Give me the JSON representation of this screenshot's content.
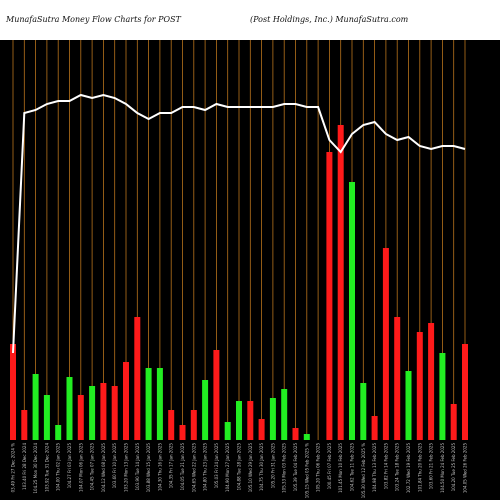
{
  "header": {
    "left_title": "MunafaSutra  Money Flow  Charts for POST",
    "right_title": "(Post Holdings,  Inc.) MunafaSutra.com"
  },
  "colors": {
    "background": "#000000",
    "grid": "#b8731c",
    "up_bar": "#22ee22",
    "down_bar": "#ff1a1a",
    "line": "#ffffff"
  },
  "chart_data": {
    "type": "bar",
    "title": "MunafaSutra  Money Flow  Charts for POST",
    "subtitle": "(Post Holdings,  Inc.) MunafaSutra.com",
    "grid": "vertical",
    "ylim": [
      0,
      100
    ],
    "categories": [
      "03.49 Fri 27 Dec 2024 %",
      "103.40 Fri 28 Dec 2024",
      "104.25 Mon 30 Dec 2024",
      "103.92 Tue 31 Dec 2024",
      "104.00 Thu 02 Jan 2025",
      "104.27 Fri 03 Jan 2025",
      "104.07 Mon 06 Jan 2025",
      "104.45 Tue 07 Jan 2025",
      "104.12 Wed 08 Jan 2025",
      "103.60 Fri 10 Jan 2025",
      "103.20 Mon 13 Jan 2025",
      "103.90 Tue 14 Jan 2025",
      "103.88 Wed 15 Jan 2025",
      "104.30 Thu 16 Jan 2025",
      "104.35 Fri 17 Jan 2025",
      "104.05 Tue 21 Jan 2025",
      "104.65 Wed 22 Jan 2025",
      "104.80 Thu 23 Jan 2025",
      "105.03 Fri 24 Jan 2025",
      "104.90 Mon 27 Jan 2025",
      "104.88 Tue 28 Jan 2025",
      "105.10 Wed 29 Jan 2025",
      "104.75 Thu 30 Jan 2025",
      "105.20 Fri 31 Jan 2025",
      "105.33 Mon 03 Feb 2025",
      "105.39 Tue 04 Feb 2025",
      "105.15 Wed 05 Feb 2025 %",
      "105.20 Thu 06 Feb 2025",
      "100.45 Fri 07 Feb 2025",
      "101.45 Mon 10 Feb 2025",
      "104.62 Tue 11 Feb 2025",
      "105.30 Wed 12 Feb 2025 %",
      "104.98 Thu 13 Feb 2025",
      "103.82 Fri 14 Feb 2025",
      "103.24 Tue 18 Feb 2025",
      "102.72 Wed 19 Feb 2025",
      "101.84 Thu 20 Feb 2025",
      "103.60 Fri 21 Feb 2025",
      "104.50 Mon 24 Feb 2025",
      "104.20 Tue 25 Feb 2025",
      "104.05 Wed 26 Feb 2025"
    ],
    "bars": [
      {
        "value": 32,
        "direction": "down"
      },
      {
        "value": 10,
        "direction": "down"
      },
      {
        "value": 22,
        "direction": "up"
      },
      {
        "value": 15,
        "direction": "up"
      },
      {
        "value": 5,
        "direction": "up"
      },
      {
        "value": 21,
        "direction": "up"
      },
      {
        "value": 15,
        "direction": "down"
      },
      {
        "value": 18,
        "direction": "up"
      },
      {
        "value": 19,
        "direction": "down"
      },
      {
        "value": 18,
        "direction": "down"
      },
      {
        "value": 26,
        "direction": "down"
      },
      {
        "value": 41,
        "direction": "down"
      },
      {
        "value": 24,
        "direction": "up"
      },
      {
        "value": 24,
        "direction": "up"
      },
      {
        "value": 10,
        "direction": "down"
      },
      {
        "value": 5,
        "direction": "down"
      },
      {
        "value": 10,
        "direction": "down"
      },
      {
        "value": 20,
        "direction": "up"
      },
      {
        "value": 30,
        "direction": "down"
      },
      {
        "value": 6,
        "direction": "up"
      },
      {
        "value": 13,
        "direction": "up"
      },
      {
        "value": 13,
        "direction": "down"
      },
      {
        "value": 7,
        "direction": "down"
      },
      {
        "value": 14,
        "direction": "up"
      },
      {
        "value": 17,
        "direction": "up"
      },
      {
        "value": 4,
        "direction": "down"
      },
      {
        "value": 2,
        "direction": "up"
      },
      {
        "value": 0,
        "direction": "up"
      },
      {
        "value": 96,
        "direction": "down"
      },
      {
        "value": 105,
        "direction": "down"
      },
      {
        "value": 86,
        "direction": "up"
      },
      {
        "value": 19,
        "direction": "up"
      },
      {
        "value": 8,
        "direction": "down"
      },
      {
        "value": 64,
        "direction": "down"
      },
      {
        "value": 41,
        "direction": "down"
      },
      {
        "value": 23,
        "direction": "up"
      },
      {
        "value": 36,
        "direction": "down"
      },
      {
        "value": 39,
        "direction": "down"
      },
      {
        "value": 29,
        "direction": "up"
      },
      {
        "value": 12,
        "direction": "down"
      },
      {
        "value": 32,
        "direction": "down"
      }
    ],
    "line": [
      9,
      89,
      90,
      92,
      93,
      93,
      95,
      94,
      95,
      94,
      92,
      89,
      87,
      89,
      89,
      91,
      91,
      90,
      92,
      91,
      91,
      91,
      91,
      91,
      92,
      92,
      91,
      91,
      80,
      76,
      82,
      85,
      86,
      82,
      80,
      81,
      78,
      77,
      78,
      78,
      77
    ]
  }
}
